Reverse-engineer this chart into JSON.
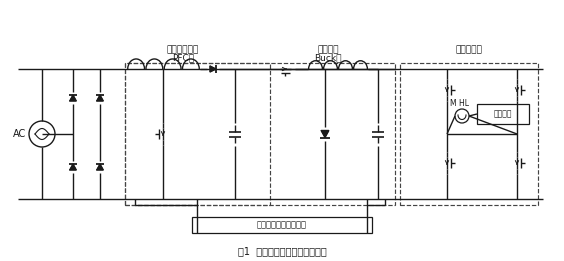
{
  "title": "图1  三级式电子镇流器拓扑结构",
  "label_pfc": "功率因数校正",
  "label_pfc2": "PFC级",
  "label_buck": "功率控制",
  "label_buck2": "Buck级",
  "label_fullbridge": "全桥逆变级",
  "label_ac": "AC",
  "label_mcu": "单片机控制及保护电路",
  "label_ignition": "点火电路",
  "label_lamp": "M HL",
  "bg_color": "#ffffff",
  "line_color": "#1a1a1a",
  "dashed_color": "#444444"
}
